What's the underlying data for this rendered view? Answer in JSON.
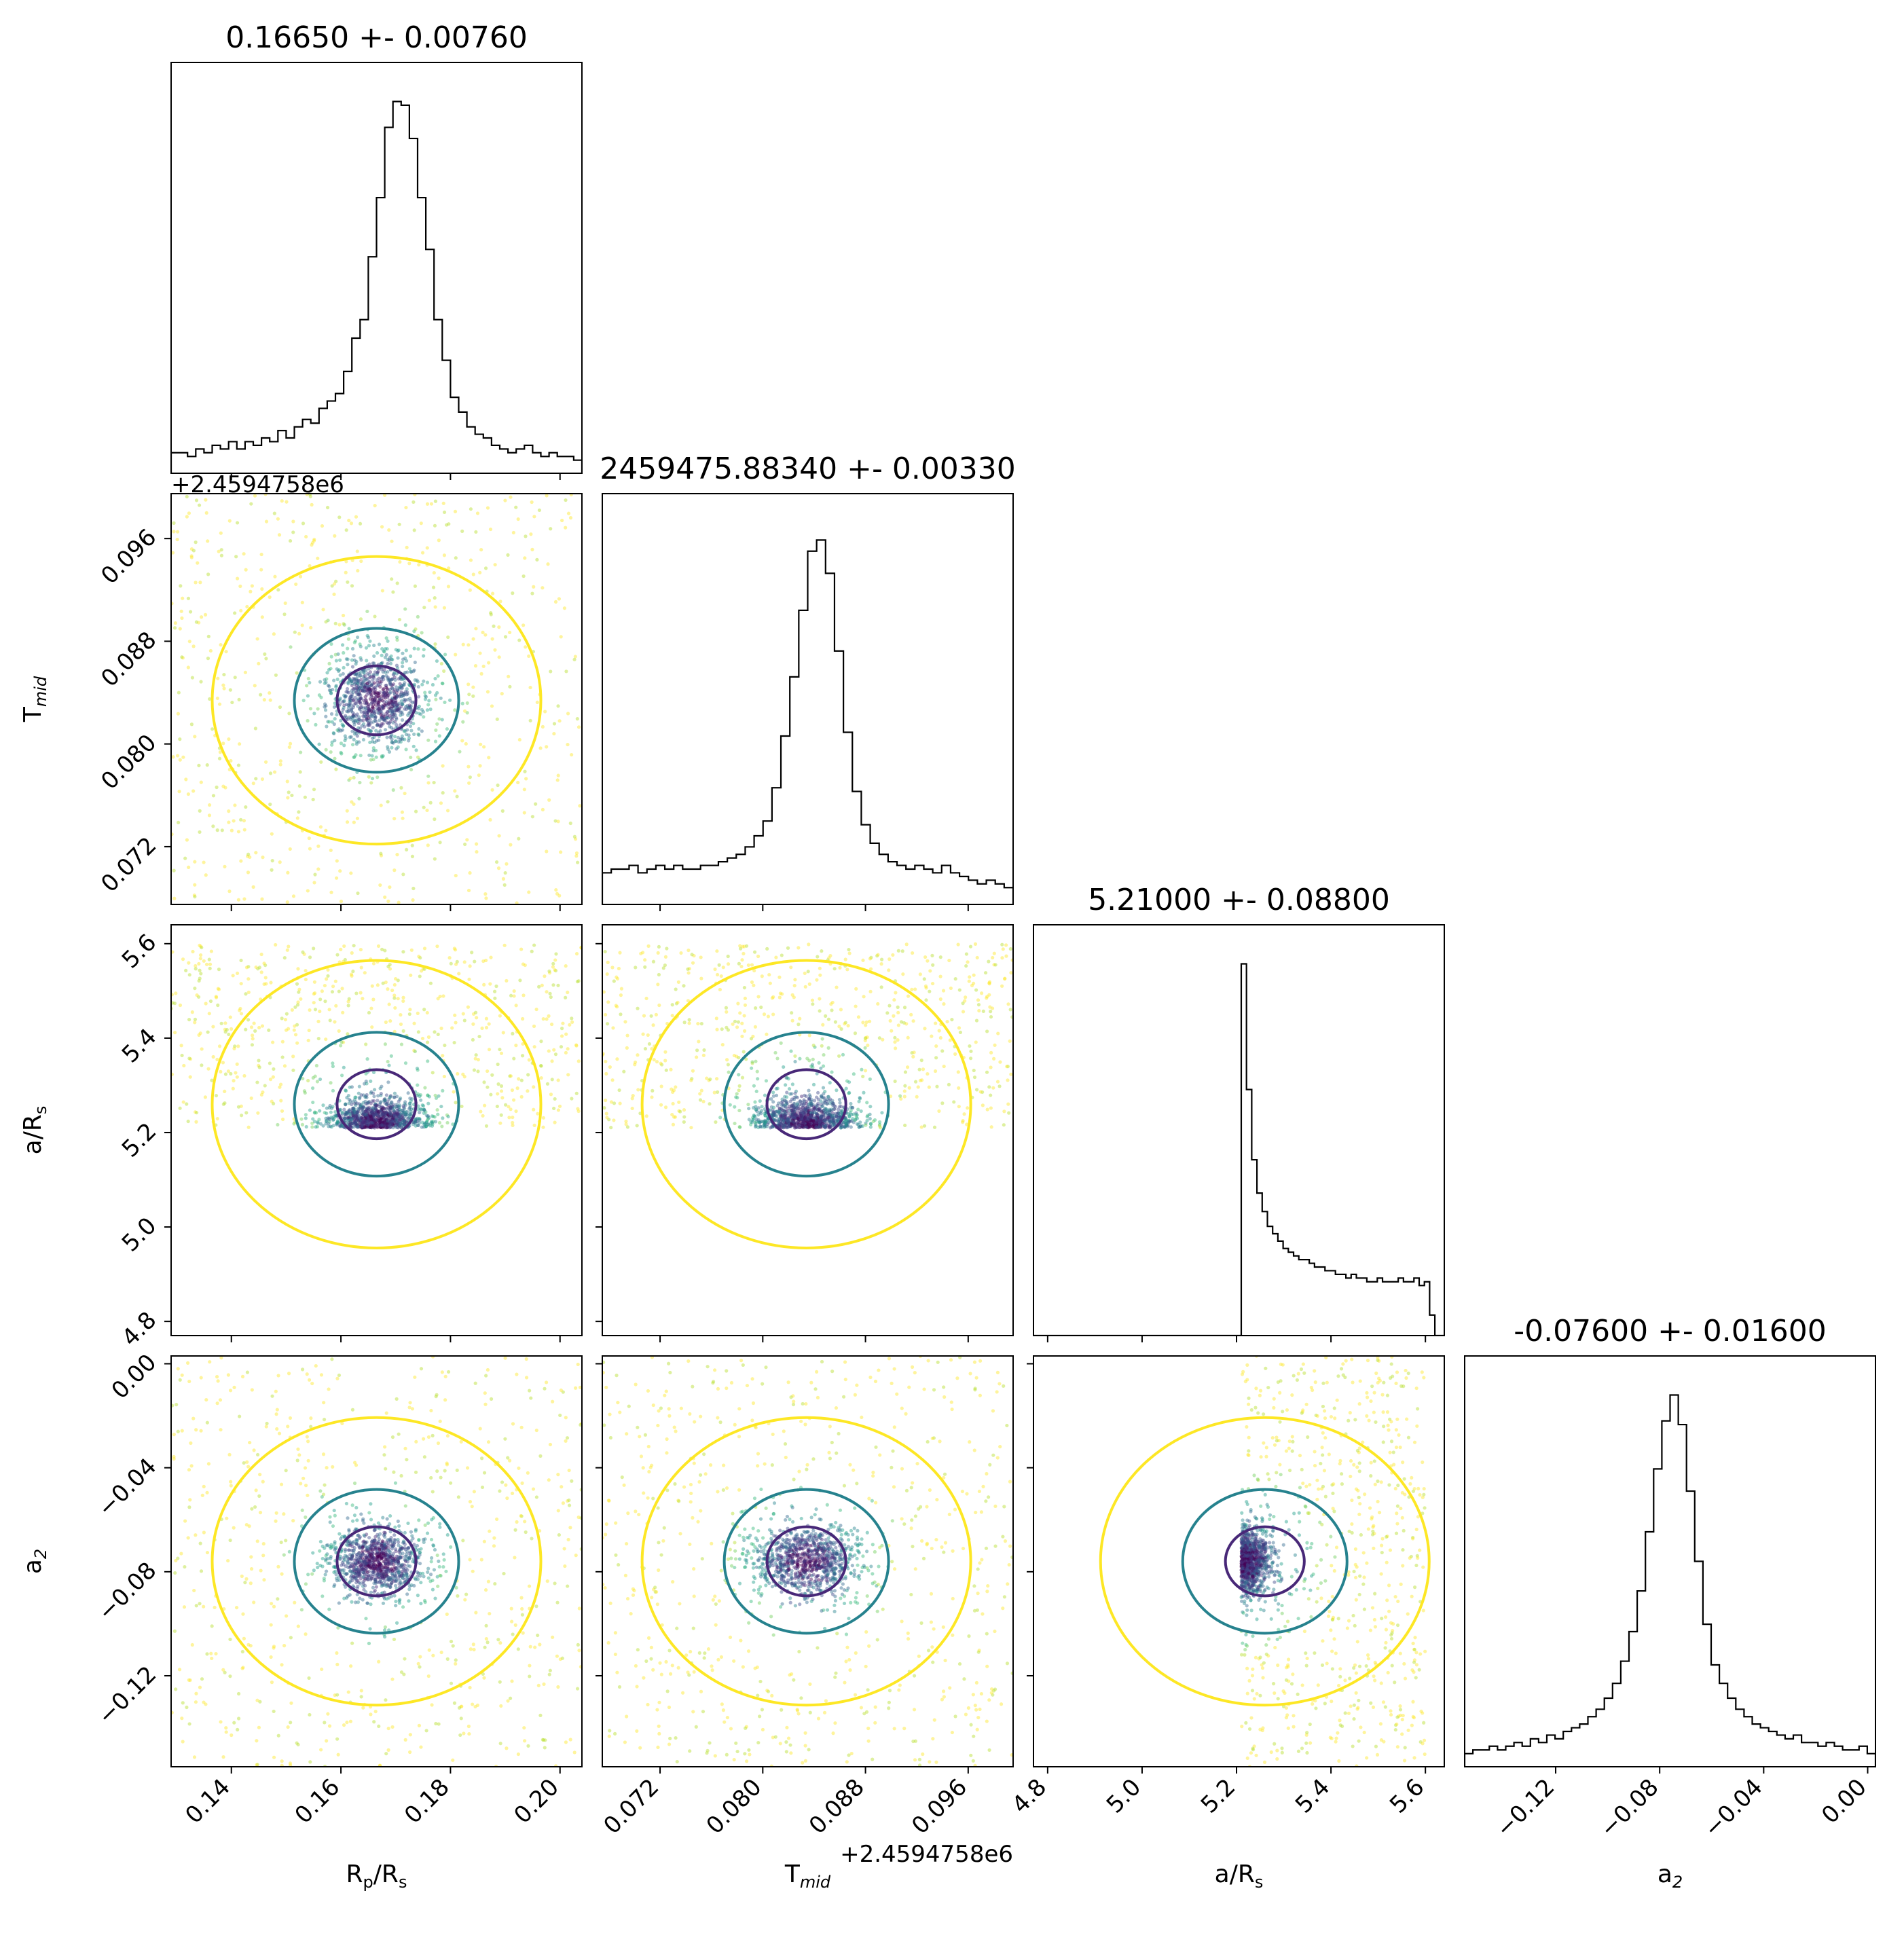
{
  "chart_data": {
    "type": "corner",
    "parameters": [
      {
        "name": "Rp/Rs",
        "label": "R",
        "label_sub": "p",
        "label_rest": "/R",
        "label_sub2": "s",
        "title": "0.16650 +- 0.00760",
        "range": [
          0.129,
          0.204
        ],
        "ticks": [
          "0.14",
          "0.16",
          "0.18",
          "0.20"
        ],
        "tick_values": [
          0.14,
          0.16,
          0.18,
          0.2
        ],
        "peak": 0.1665,
        "width": 0.0045,
        "hist": [
          0.05,
          0.05,
          0.04,
          0.06,
          0.05,
          0.07,
          0.06,
          0.08,
          0.06,
          0.08,
          0.07,
          0.09,
          0.08,
          0.11,
          0.09,
          0.12,
          0.14,
          0.13,
          0.17,
          0.19,
          0.21,
          0.27,
          0.36,
          0.41,
          0.58,
          0.74,
          0.93,
          1.0,
          0.99,
          0.9,
          0.74,
          0.6,
          0.41,
          0.3,
          0.2,
          0.16,
          0.12,
          0.1,
          0.09,
          0.07,
          0.06,
          0.05,
          0.06,
          0.07,
          0.05,
          0.04,
          0.05,
          0.04,
          0.04,
          0.03
        ]
      },
      {
        "name": "Tmid",
        "label": "T",
        "label_sub": "mid",
        "title": "2459475.88340 +- 0.00330",
        "range": [
          0.0675,
          0.0995
        ],
        "offset_text": "+2.4594758e6",
        "ticks": [
          "0.072",
          "0.080",
          "0.088",
          "0.096"
        ],
        "tick_values": [
          0.072,
          0.08,
          0.088,
          0.096
        ],
        "peak": 0.0834,
        "width": 0.0021,
        "hist": [
          0.08,
          0.09,
          0.09,
          0.1,
          0.08,
          0.09,
          0.1,
          0.09,
          0.1,
          0.09,
          0.09,
          0.1,
          0.1,
          0.11,
          0.12,
          0.13,
          0.15,
          0.18,
          0.22,
          0.31,
          0.45,
          0.61,
          0.79,
          0.95,
          0.98,
          0.89,
          0.68,
          0.46,
          0.3,
          0.21,
          0.16,
          0.13,
          0.11,
          0.1,
          0.09,
          0.1,
          0.09,
          0.08,
          0.1,
          0.08,
          0.07,
          0.06,
          0.05,
          0.06,
          0.05,
          0.04
        ]
      },
      {
        "name": "a/Rs",
        "label": "a/R",
        "label_sub": "s",
        "title": "5.21000 +- 0.08800",
        "range": [
          4.77,
          5.64
        ],
        "ticks": [
          "4.8",
          "5.0",
          "5.2",
          "5.4",
          "5.6"
        ],
        "tick_values": [
          4.8,
          5.0,
          5.2,
          5.4,
          5.6
        ],
        "lower_edge": 5.21,
        "upper_edge": 5.6,
        "hist": [
          1.0,
          0.66,
          0.47,
          0.38,
          0.33,
          0.29,
          0.27,
          0.25,
          0.23,
          0.22,
          0.21,
          0.2,
          0.2,
          0.19,
          0.18,
          0.18,
          0.17,
          0.17,
          0.16,
          0.16,
          0.15,
          0.16,
          0.15,
          0.15,
          0.14,
          0.14,
          0.15,
          0.14,
          0.14,
          0.14,
          0.15,
          0.14,
          0.14,
          0.15,
          0.13,
          0.14,
          0.05
        ]
      },
      {
        "name": "a2",
        "label": "a",
        "label_sub": "2",
        "title": "-0.07600 +- 0.01600",
        "range": [
          -0.155,
          0.003
        ],
        "ticks": [
          "−0.12",
          "−0.08",
          "−0.04",
          "0.00"
        ],
        "tick_values": [
          -0.12,
          -0.08,
          -0.04,
          0.0
        ],
        "peak": -0.076,
        "width": 0.0065,
        "hist": [
          0.03,
          0.04,
          0.04,
          0.05,
          0.04,
          0.05,
          0.06,
          0.05,
          0.07,
          0.06,
          0.08,
          0.07,
          0.09,
          0.1,
          0.11,
          0.13,
          0.15,
          0.18,
          0.22,
          0.28,
          0.36,
          0.47,
          0.63,
          0.8,
          0.93,
          1.0,
          0.92,
          0.74,
          0.55,
          0.38,
          0.27,
          0.22,
          0.18,
          0.15,
          0.13,
          0.11,
          0.1,
          0.09,
          0.08,
          0.07,
          0.08,
          0.06,
          0.06,
          0.05,
          0.06,
          0.05,
          0.04,
          0.04,
          0.05,
          0.03
        ]
      }
    ]
  }
}
